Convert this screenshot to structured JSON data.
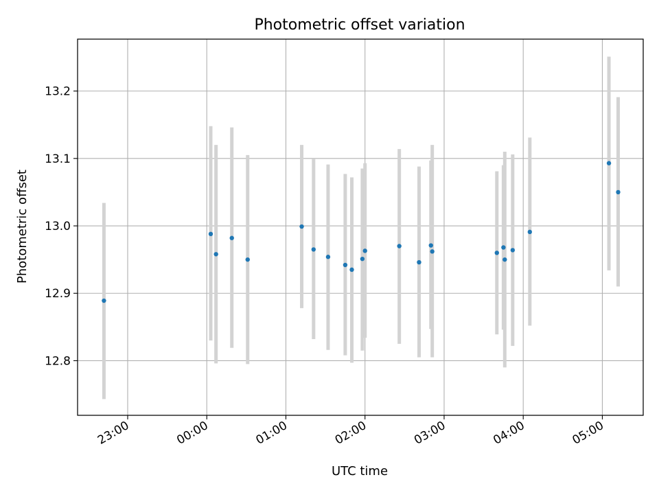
{
  "chart_data": {
    "type": "scatter",
    "title": "Photometric offset variation",
    "xlabel": "UTC time",
    "ylabel": "Photometric offset",
    "grid": true,
    "x_tick_labels": [
      "23:00",
      "00:00",
      "01:00",
      "02:00",
      "03:00",
      "04:00",
      "05:00"
    ],
    "y_tick_labels": [
      "12.8",
      "12.9",
      "13.0",
      "13.1",
      "13.2"
    ],
    "y_ticks": [
      12.8,
      12.9,
      13.0,
      13.1,
      13.2
    ],
    "xlim": [
      "22:22",
      "05:31"
    ],
    "ylim": [
      12.719,
      13.277
    ],
    "colors": {
      "points": "#1f77b4",
      "errorbars": "#d3d3d3",
      "grid": "#b0b0b0"
    },
    "series": [
      {
        "x": [
          "22:42",
          "00:03",
          "00:07",
          "00:19",
          "00:31",
          "01:12",
          "01:21",
          "01:32",
          "01:45",
          "01:50",
          "01:58",
          "02:00",
          "02:26",
          "02:41",
          "02:50",
          "02:51",
          "03:40",
          "03:45",
          "03:46",
          "03:52",
          "04:05",
          "05:05",
          "05:12"
        ],
        "y": [
          12.889,
          12.988,
          12.958,
          12.982,
          12.95,
          12.999,
          12.965,
          12.954,
          12.942,
          12.935,
          12.951,
          12.963,
          12.97,
          12.946,
          12.971,
          12.962,
          12.96,
          12.968,
          12.95,
          12.964,
          12.991,
          13.093,
          13.05
        ],
        "y_low": [
          12.743,
          12.83,
          12.796,
          12.819,
          12.795,
          12.878,
          12.832,
          12.816,
          12.808,
          12.797,
          12.815,
          12.834,
          12.825,
          12.805,
          12.847,
          12.805,
          12.839,
          12.846,
          12.79,
          12.822,
          12.852,
          12.934,
          12.91
        ],
        "y_high": [
          13.034,
          13.148,
          13.12,
          13.146,
          13.105,
          13.12,
          13.099,
          13.091,
          13.077,
          13.072,
          13.085,
          13.093,
          13.114,
          13.088,
          13.097,
          13.12,
          13.081,
          13.09,
          13.11,
          13.106,
          13.131,
          13.251,
          13.191
        ]
      }
    ]
  }
}
